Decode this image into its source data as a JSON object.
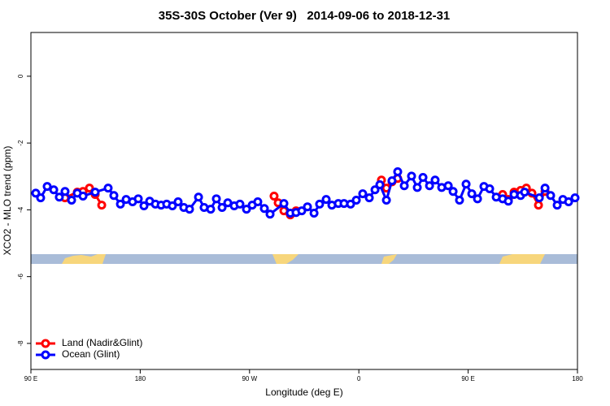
{
  "chart_data": {
    "type": "line",
    "title": "35S-30S October (Ver 9)   2014-09-06 to 2018-12-31",
    "xlabel": "Longitude (deg E)",
    "ylabel": "XCO2 - MLO trend (ppm)",
    "xlim": [
      90,
      540
    ],
    "ylim": [
      -8.78,
      1.31
    ],
    "xticks": [
      {
        "value": 90,
        "label": "90 E"
      },
      {
        "value": 180,
        "label": "180"
      },
      {
        "value": 270,
        "label": "90 W"
      },
      {
        "value": 360,
        "label": "0"
      },
      {
        "value": 450,
        "label": "90 E"
      },
      {
        "value": 540,
        "label": "180"
      }
    ],
    "yticks": [
      -8,
      -6,
      -4,
      -2,
      0
    ],
    "legend": "bottom-left",
    "series": [
      {
        "name": "Land (Nadir&Glint)",
        "color": "#ff0000",
        "x": [
          118.1,
          128.2,
          132.9,
          138.2,
          142.9,
          148.3,
          null,
          290.2,
          293.6,
          298.3,
          303.6,
          308.3,
          null,
          378.6,
          382.7,
          387.3,
          392.0,
          null,
          478.4,
          483.1,
          487.8,
          493.2,
          497.9,
          502.5,
          507.9,
          513.3
        ],
        "values": [
          -3.64,
          -3.47,
          -3.45,
          -3.35,
          -3.54,
          -3.86,
          null,
          -3.59,
          -3.79,
          -4.03,
          -4.15,
          -4.03,
          null,
          -3.11,
          -3.35,
          -3.16,
          -3.06,
          null,
          -3.54,
          -3.69,
          -3.47,
          -3.42,
          -3.35,
          -3.5,
          -3.86,
          -3.45
        ]
      },
      {
        "name": "Ocean (Glint)",
        "color": "#0000ff",
        "x": [
          94.0,
          98.0,
          103.4,
          108.8,
          113.4,
          118.1,
          123.5,
          128.2,
          132.9,
          142.9,
          153.6,
          158.3,
          163.7,
          168.4,
          173.7,
          178.4,
          183.1,
          187.8,
          192.5,
          197.2,
          201.8,
          206.5,
          211.2,
          215.9,
          220.6,
          228.0,
          232.6,
          238.0,
          242.7,
          247.4,
          252.1,
          257.4,
          262.1,
          267.5,
          272.2,
          276.8,
          282.2,
          286.9,
          298.3,
          303.6,
          308.3,
          313.0,
          317.7,
          323.1,
          327.7,
          333.1,
          337.8,
          343.1,
          347.8,
          353.2,
          357.9,
          363.2,
          368.6,
          373.3,
          377.3,
          382.7,
          387.3,
          392.0,
          397.4,
          403.4,
          408.1,
          412.8,
          418.2,
          422.8,
          428.2,
          433.6,
          437.6,
          442.9,
          448.3,
          453.0,
          457.7,
          463.0,
          467.7,
          473.1,
          478.4,
          483.1,
          487.8,
          493.2,
          496.5,
          508.6,
          513.3,
          517.9,
          523.3,
          528.0,
          532.7,
          538.0
        ],
        "values": [
          -3.5,
          -3.64,
          -3.3,
          -3.4,
          -3.62,
          -3.45,
          -3.71,
          -3.5,
          -3.59,
          -3.47,
          -3.35,
          -3.57,
          -3.83,
          -3.69,
          -3.76,
          -3.67,
          -3.88,
          -3.74,
          -3.83,
          -3.86,
          -3.83,
          -3.88,
          -3.76,
          -3.93,
          -3.98,
          -3.62,
          -3.93,
          -3.98,
          -3.67,
          -3.93,
          -3.79,
          -3.88,
          -3.83,
          -3.98,
          -3.86,
          -3.76,
          -3.96,
          -4.13,
          -3.81,
          -4.1,
          -4.08,
          -4.03,
          -3.91,
          -4.1,
          -3.83,
          -3.69,
          -3.86,
          -3.81,
          -3.81,
          -3.83,
          -3.71,
          -3.52,
          -3.64,
          -3.4,
          -3.25,
          -3.71,
          -3.13,
          -2.86,
          -3.28,
          -2.99,
          -3.33,
          -3.03,
          -3.28,
          -3.11,
          -3.33,
          -3.28,
          -3.45,
          -3.71,
          -3.23,
          -3.52,
          -3.67,
          -3.3,
          -3.37,
          -3.62,
          -3.67,
          -3.74,
          -3.54,
          -3.57,
          -3.47,
          -3.64,
          -3.35,
          -3.57,
          -3.86,
          -3.69,
          -3.76,
          -3.64
        ]
      }
    ]
  }
}
